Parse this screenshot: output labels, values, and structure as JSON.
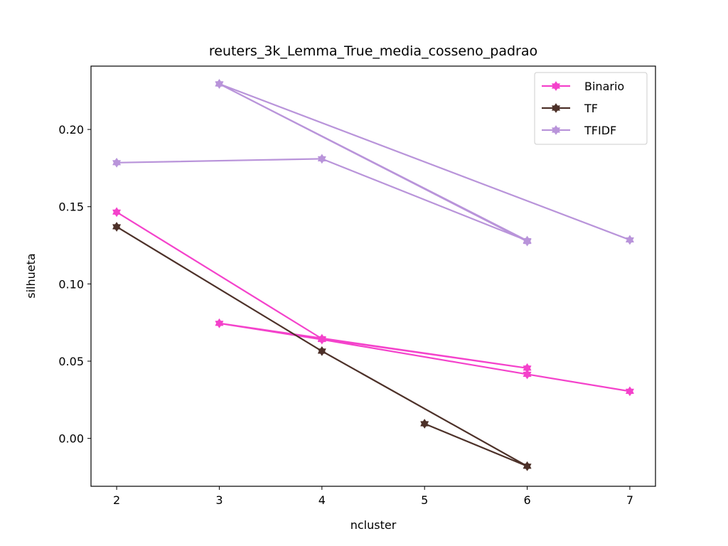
{
  "chart_data": {
    "type": "line",
    "title": "reuters_3k_Lemma_True_media_cosseno_padrao",
    "xlabel": "ncluster",
    "ylabel": "silhueta",
    "xlim": [
      1.75,
      7.25
    ],
    "ylim": [
      -0.031,
      0.241
    ],
    "xticks": [
      2,
      3,
      4,
      5,
      6,
      7
    ],
    "xtick_labels": [
      "2",
      "3",
      "4",
      "5",
      "6",
      "7"
    ],
    "yticks": [
      0.0,
      0.05,
      0.1,
      0.15,
      0.2
    ],
    "ytick_labels": [
      "0.00",
      "0.05",
      "0.10",
      "0.15",
      "0.20"
    ],
    "grid": false,
    "legend_position": "top-right",
    "series": [
      {
        "name": "Binario",
        "color": "#f442cb",
        "x": [
          2,
          4,
          6,
          3,
          4,
          6,
          7
        ],
        "y": [
          0.1465,
          0.0645,
          0.0455,
          0.0745,
          0.064,
          0.0415,
          0.0305
        ]
      },
      {
        "name": "TF",
        "color": "#4d3129",
        "x": [
          2,
          4,
          6,
          5
        ],
        "y": [
          0.137,
          0.0565,
          -0.018,
          0.0095
        ]
      },
      {
        "name": "TFIDF",
        "color": "#b994da",
        "x": [
          2,
          4,
          6,
          3,
          6,
          3,
          7
        ],
        "y": [
          0.1785,
          0.181,
          0.128,
          0.2295,
          0.1275,
          0.2295,
          0.1285
        ]
      }
    ]
  }
}
